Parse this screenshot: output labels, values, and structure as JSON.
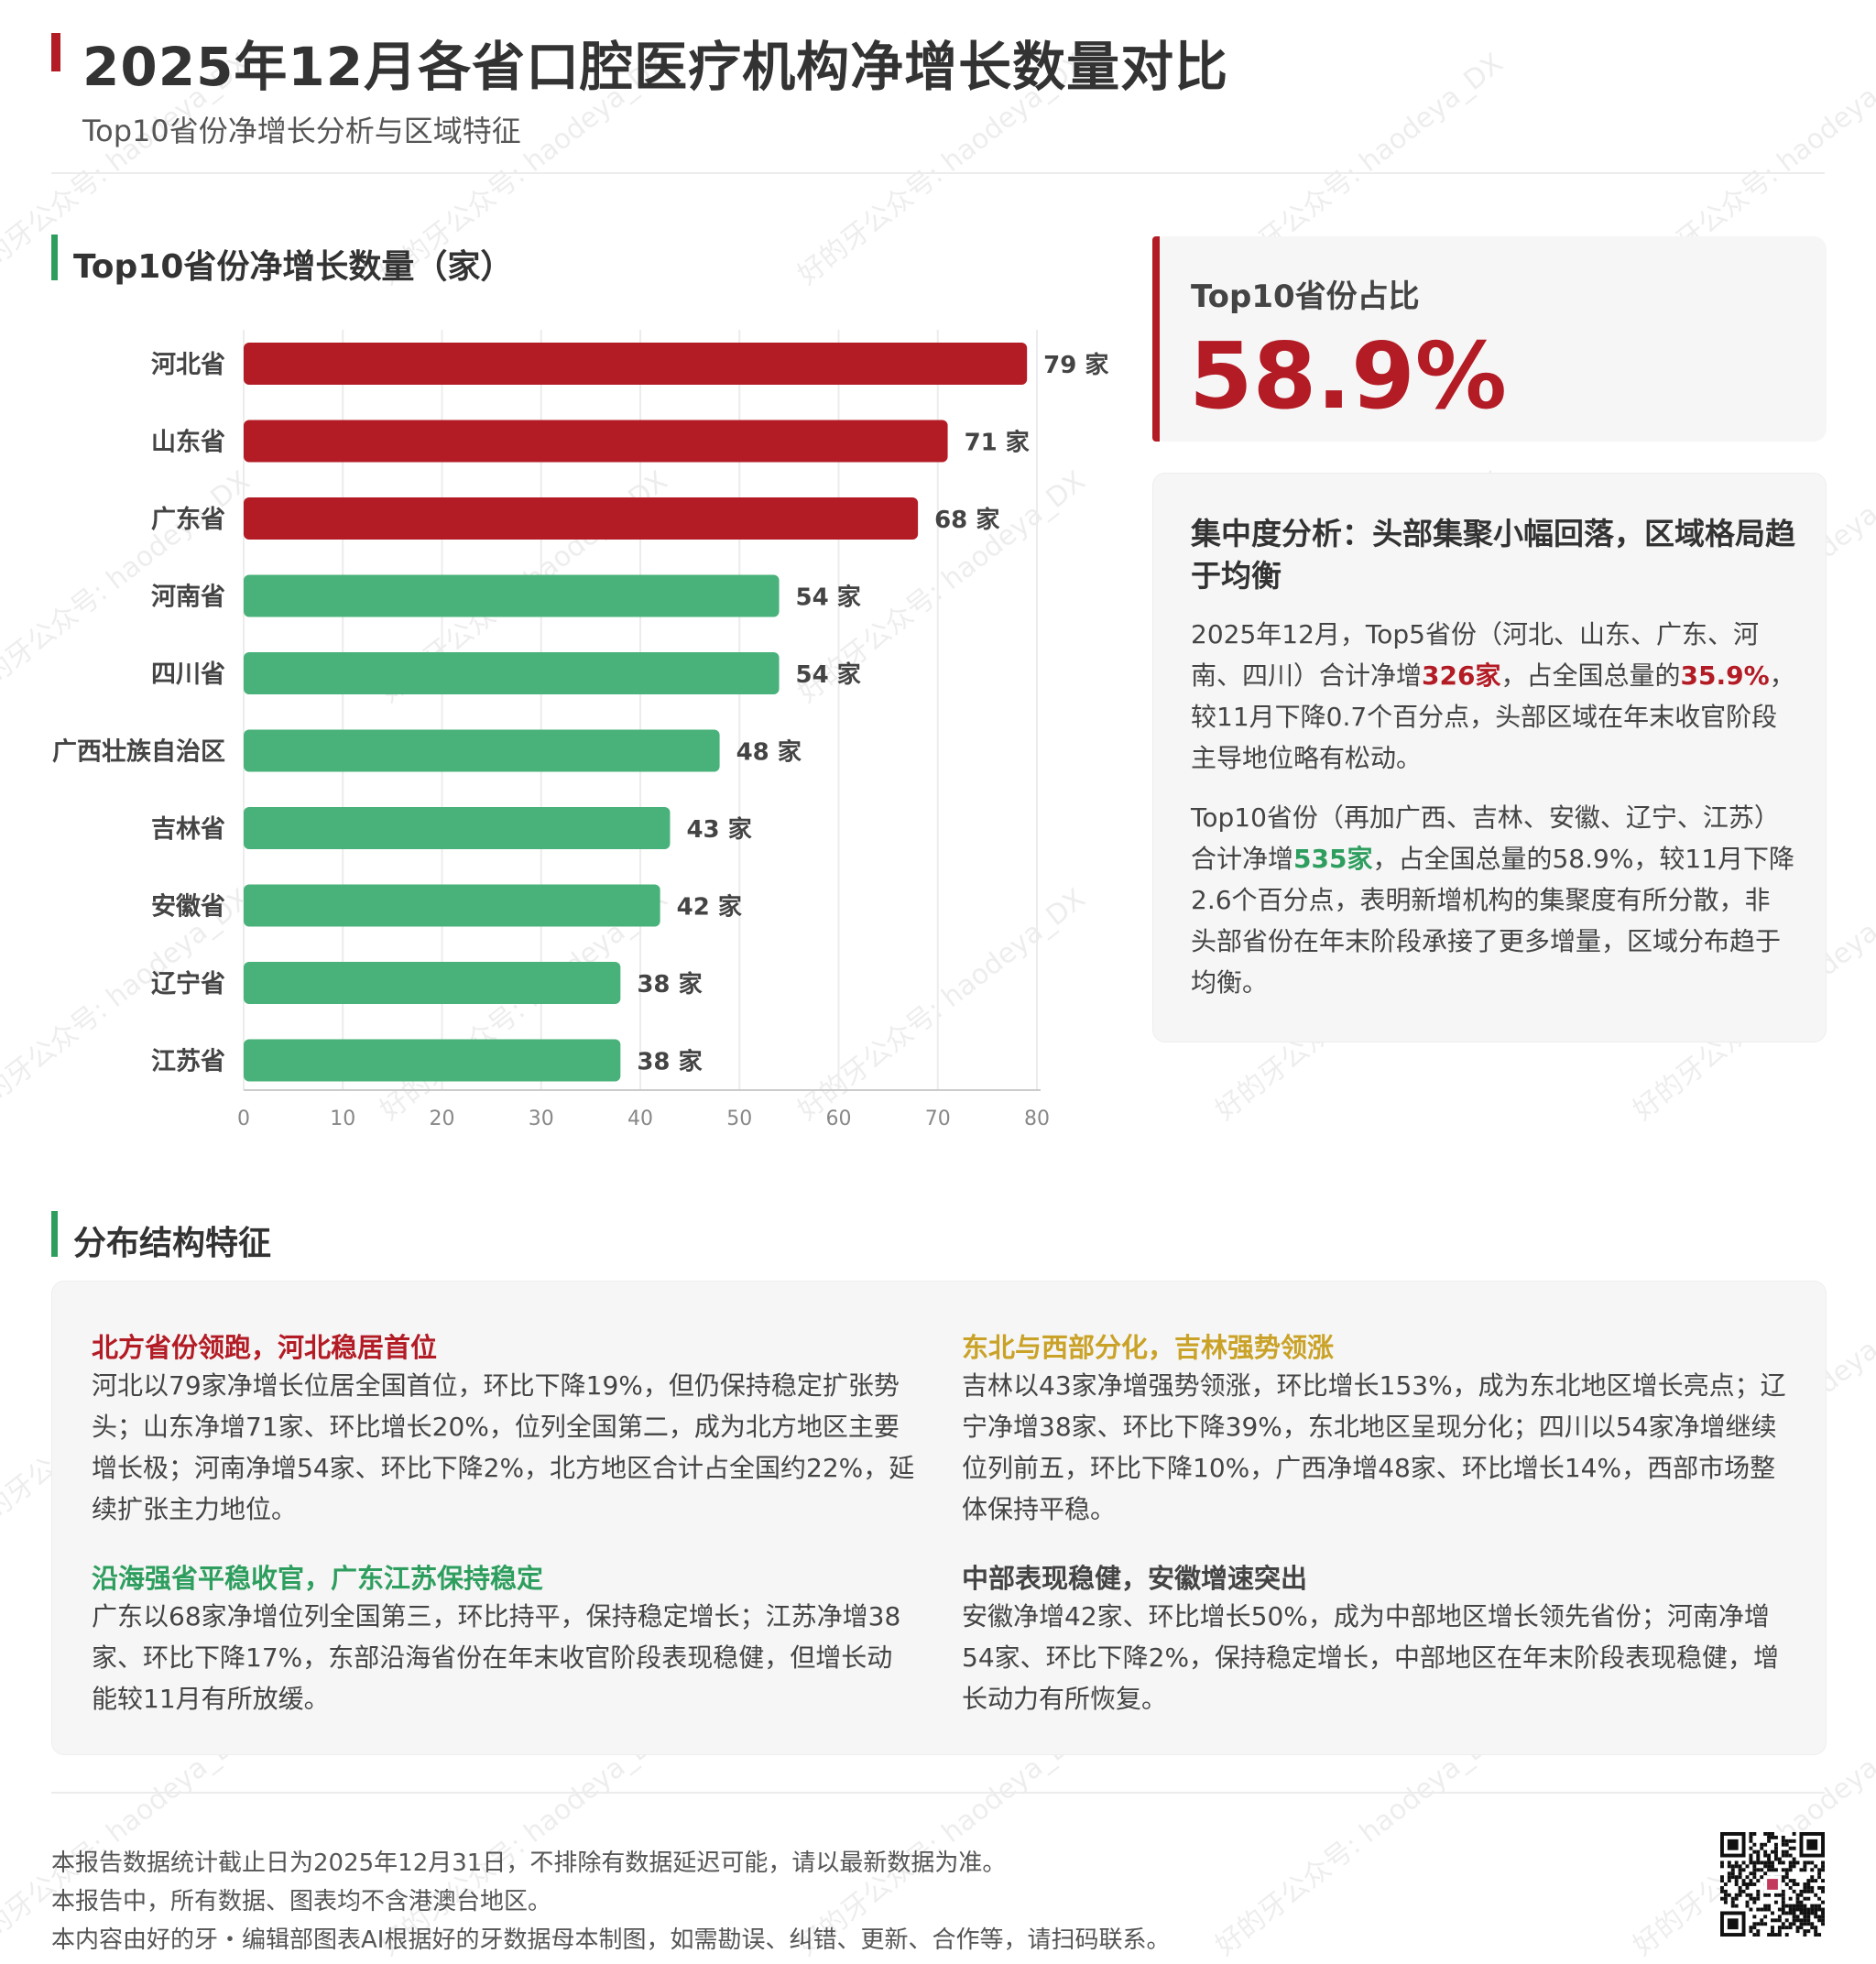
{
  "header": {
    "title": "2025年12月各省口腔医疗机构净增长数量对比",
    "subtitle": "Top10省份净增长分析与区域特征"
  },
  "chart_section": {
    "title": "Top10省份净增长数量（家）"
  },
  "chart_data": {
    "type": "bar",
    "orientation": "horizontal",
    "title": "Top10省份净增长数量（家）",
    "categories": [
      "河北省",
      "山东省",
      "广东省",
      "河南省",
      "四川省",
      "广西壮族自治区",
      "吉林省",
      "安徽省",
      "辽宁省",
      "江苏省"
    ],
    "values": [
      79,
      71,
      68,
      54,
      54,
      48,
      43,
      42,
      38,
      38
    ],
    "value_suffix": " 家",
    "xlim": [
      0,
      80
    ],
    "xticks": [
      0,
      10,
      20,
      30,
      40,
      50,
      60,
      70,
      80
    ],
    "grid": true,
    "colors": {
      "top3": "#b31b25",
      "others": "#48b27a"
    },
    "top_highlight_count": 3
  },
  "share_card": {
    "label": "Top10省份占比",
    "value": "58.9%"
  },
  "analysis": {
    "title": "集中度分析：头部集聚小幅回落，区域格局趋于均衡",
    "p1_a": "2025年12月，Top5省份（河北、山东、广东、河南、四川）合计净增",
    "p1_b": "326家",
    "p1_c": "，占全国总量的",
    "p1_d": "35.9%",
    "p1_e": "，较11月下降0.7个百分点，头部区域在年末收官阶段主导地位略有松动。",
    "p2_a": "Top10省份（再加广西、吉林、安徽、辽宁、江苏）合计净增",
    "p2_b": "535家",
    "p2_c": "，占全国总量的58.9%，较11月下降2.6个百分点，表明新增机构的集聚度有所分散，非头部省份在年末阶段承接了更多增量，区域分布趋于均衡。"
  },
  "distribution": {
    "title": "分布结构特征",
    "blocks": [
      {
        "title": "北方省份领跑，河北稳居首位",
        "color": "#b31b25",
        "body": "河北以79家净增长位居全国首位，环比下降19%，但仍保持稳定扩张势头；山东净增71家、环比增长20%，位列全国第二，成为北方地区主要增长极；河南净增54家、环比下降2%，北方地区合计占全国约22%，延续扩张主力地位。"
      },
      {
        "title": "东北与西部分化，吉林强势领涨",
        "color": "#c9a227",
        "body": "吉林以43家净增强势领涨，环比增长153%，成为东北地区增长亮点；辽宁净增38家、环比下降39%，东北地区呈现分化；四川以54家净增继续位列前五，环比下降10%，广西净增48家、环比增长14%，西部市场整体保持平稳。"
      },
      {
        "title": "沿海强省平稳收官，广东江苏保持稳定",
        "color": "#2e9e5e",
        "body": "广东以68家净增位列全国第三，环比持平，保持稳定增长；江苏净增38家、环比下降17%，东部沿海省份在年末收官阶段表现稳健，但增长动能较11月有所放缓。"
      },
      {
        "title": "中部表现稳健，安徽增速突出",
        "color": "#444444",
        "body": "安徽净增42家、环比增长50%，成为中部地区增长领先省份；河南净增54家、环比下降2%，保持稳定增长，中部地区在年末阶段表现稳健，增长动力有所恢复。"
      }
    ]
  },
  "footer": {
    "line1": "本报告数据统计截止日为2025年12月31日，不排除有数据延迟可能，请以最新数据为准。",
    "line2": "本报告中，所有数据、图表均不含港澳台地区。",
    "line3": "本内容由好的牙・编辑部图表AI根据好的牙数据母本制图，如需勘误、纠错、更新、合作等，请扫码联系。"
  },
  "watermark": {
    "text": "好的牙公众号: haodeya_DX"
  }
}
